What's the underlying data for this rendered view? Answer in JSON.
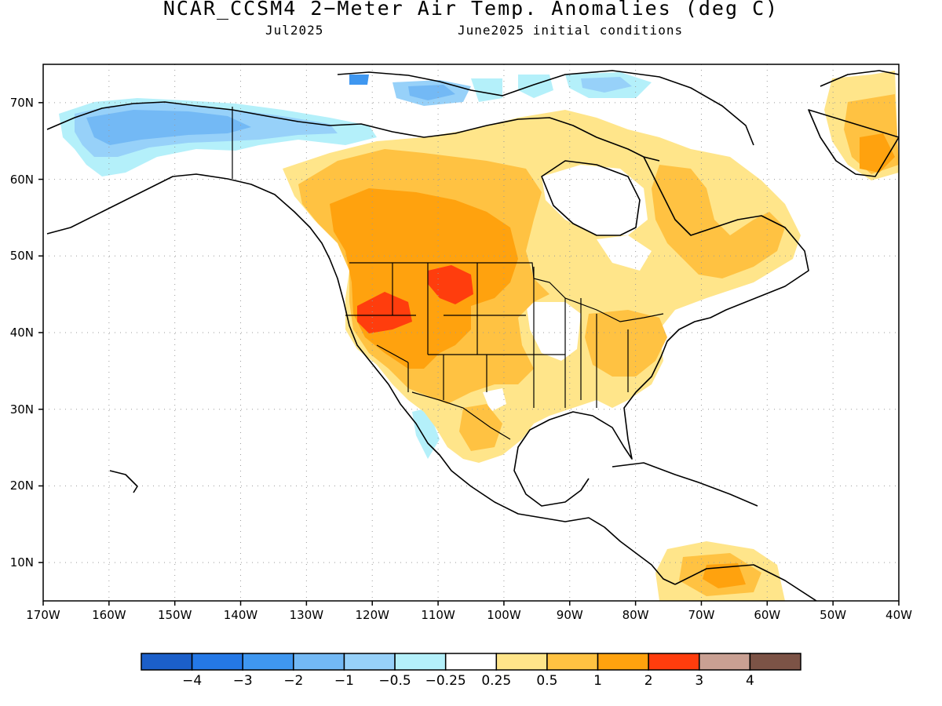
{
  "title": "NCAR_CCSM4 2−Meter Air Temp. Anomalies (deg C)",
  "subtitle_left": "Jul2025",
  "subtitle_right": "June2025 initial conditions",
  "map": {
    "lon_range": [
      -170,
      -40
    ],
    "lat_range": [
      5,
      75
    ],
    "grid": "dotted",
    "lat_ticks": [
      "70N",
      "60N",
      "50N",
      "40N",
      "30N",
      "20N",
      "10N"
    ],
    "lon_ticks": [
      "170W",
      "160W",
      "150W",
      "140W",
      "130W",
      "120W",
      "110W",
      "100W",
      "90W",
      "80W",
      "70W",
      "60W",
      "50W",
      "40W"
    ]
  },
  "colorbar": {
    "colors": [
      "#1b5fc9",
      "#2478e6",
      "#3f97f0",
      "#73b9f5",
      "#97d1f9",
      "#b4f0fa",
      "#ffffff",
      "#ffe58a",
      "#ffc242",
      "#ffa20e",
      "#ff3d0d",
      "#c9a093",
      "#7c5346"
    ],
    "labels": [
      "−4",
      "−3",
      "−2",
      "−1",
      "−0.5",
      "−0.25",
      "0.25",
      "0.5",
      "1",
      "2",
      "3",
      "4"
    ]
  }
}
